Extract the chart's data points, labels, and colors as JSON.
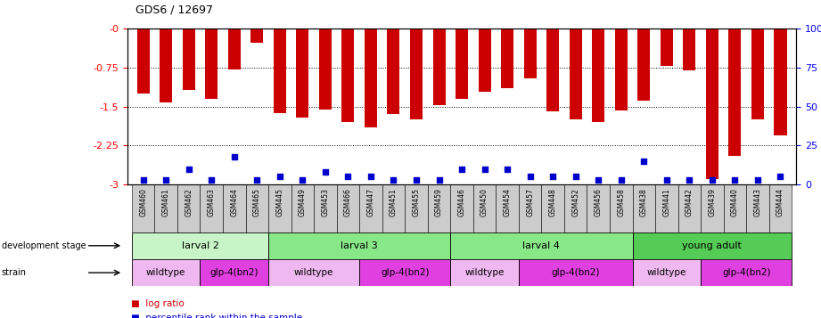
{
  "title": "GDS6 / 12697",
  "samples": [
    "GSM460",
    "GSM461",
    "GSM462",
    "GSM463",
    "GSM464",
    "GSM465",
    "GSM445",
    "GSM449",
    "GSM453",
    "GSM466",
    "GSM447",
    "GSM451",
    "GSM455",
    "GSM459",
    "GSM446",
    "GSM450",
    "GSM454",
    "GSM457",
    "GSM448",
    "GSM452",
    "GSM456",
    "GSM458",
    "GSM438",
    "GSM441",
    "GSM442",
    "GSM439",
    "GSM440",
    "GSM443",
    "GSM444"
  ],
  "log_ratios": [
    -1.25,
    -1.42,
    -1.18,
    -1.35,
    -0.78,
    -0.28,
    -1.62,
    -1.72,
    -1.55,
    -1.8,
    -1.9,
    -1.65,
    -1.75,
    -1.48,
    -1.35,
    -1.22,
    -1.15,
    -0.95,
    -1.6,
    -1.75,
    -1.8,
    -1.58,
    -1.38,
    -0.72,
    -0.8,
    -2.9,
    -2.45,
    -1.75,
    -2.05
  ],
  "percentile_ranks": [
    3,
    3,
    10,
    3,
    18,
    3,
    5,
    3,
    8,
    5,
    5,
    3,
    3,
    3,
    10,
    10,
    10,
    5,
    5,
    5,
    3,
    3,
    15,
    3,
    3,
    3,
    3,
    3,
    5
  ],
  "dev_stage_groups": [
    {
      "label": "larval 2",
      "start": 0,
      "end": 6
    },
    {
      "label": "larval 3",
      "start": 6,
      "end": 14
    },
    {
      "label": "larval 4",
      "start": 14,
      "end": 22
    },
    {
      "label": "young adult",
      "start": 22,
      "end": 29
    }
  ],
  "dev_stage_colors": [
    "#c8f5c8",
    "#88e888",
    "#88e888",
    "#55cc55"
  ],
  "strain_groups": [
    {
      "label": "wildtype",
      "start": 0,
      "end": 3
    },
    {
      "label": "glp-4(bn2)",
      "start": 3,
      "end": 6
    },
    {
      "label": "wildtype",
      "start": 6,
      "end": 10
    },
    {
      "label": "glp-4(bn2)",
      "start": 10,
      "end": 14
    },
    {
      "label": "wildtype",
      "start": 14,
      "end": 17
    },
    {
      "label": "glp-4(bn2)",
      "start": 17,
      "end": 22
    },
    {
      "label": "wildtype",
      "start": 22,
      "end": 25
    },
    {
      "label": "glp-4(bn2)",
      "start": 25,
      "end": 29
    }
  ],
  "strain_wildtype_color": "#f0b8f0",
  "strain_mutant_color": "#e040e0",
  "ylim_left": [
    -3.0,
    0.0
  ],
  "ylim_right": [
    0,
    100
  ],
  "yticks_left": [
    0.0,
    -0.75,
    -1.5,
    -2.25,
    -3.0
  ],
  "ytick_labels_left": [
    "-0",
    "-0.75",
    "-1.5",
    "-2.25",
    "-3"
  ],
  "yticks_right": [
    0,
    25,
    50,
    75,
    100
  ],
  "ytick_labels_right": [
    "0",
    "25",
    "50",
    "75",
    "100%"
  ],
  "bar_color": "#cc0000",
  "dot_color": "#0000cc",
  "bg_color": "#ffffff",
  "tick_bg_color": "#cccccc"
}
